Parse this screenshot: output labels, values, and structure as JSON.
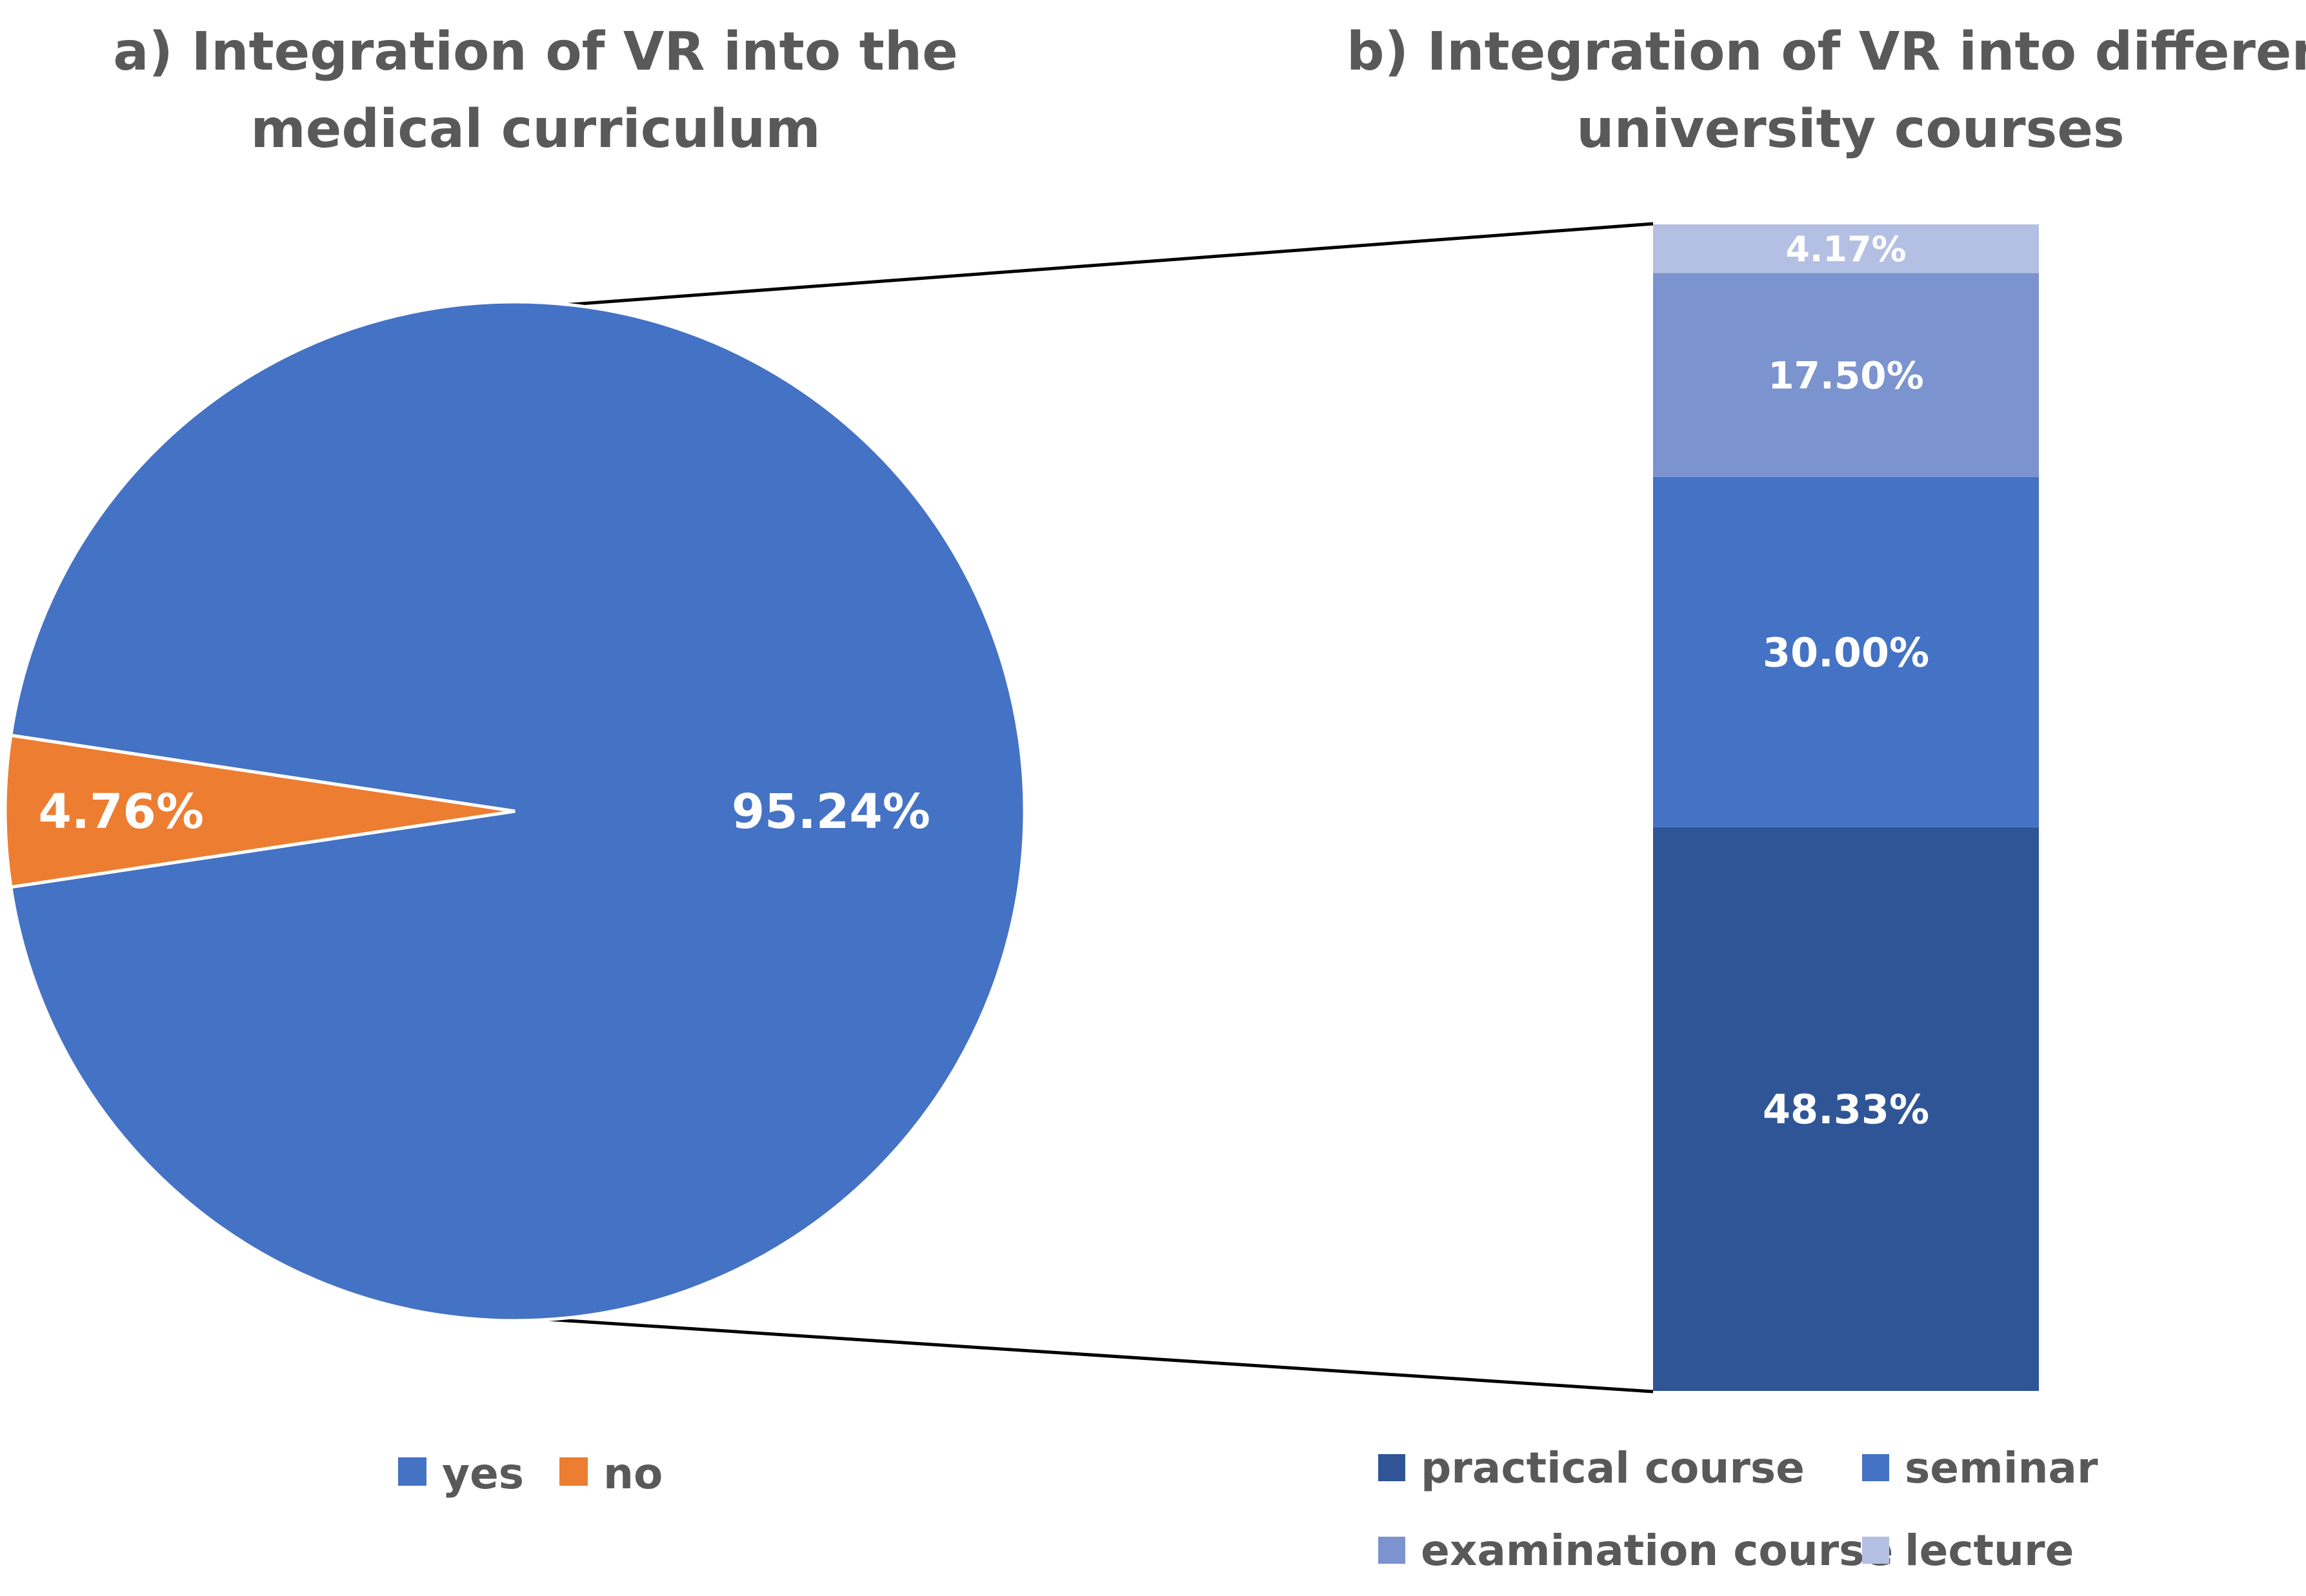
{
  "chart_data": [
    {
      "type": "pie",
      "title": "a) Integration of VR into the medical curriculum",
      "title_lines": [
        "a) Integration of VR into the",
        "medical curriculum"
      ],
      "categories": [
        "yes",
        "no"
      ],
      "values": [
        95.24,
        4.76
      ],
      "data_labels": [
        "95.24%",
        "4.76%"
      ],
      "colors": [
        "#4472C4",
        "#ED7D31"
      ],
      "legend": {
        "position": "bottom",
        "entries": [
          "yes",
          "no"
        ]
      }
    },
    {
      "type": "bar",
      "stacked": true,
      "title": "b) Integration of VR into different university courses",
      "title_lines": [
        "b) Integration of VR into different",
        "university courses"
      ],
      "categories": [
        "practical course",
        "seminar",
        "examination course",
        "lecture"
      ],
      "values": [
        48.33,
        30.0,
        17.5,
        4.17
      ],
      "data_labels": [
        "48.33%",
        "30.00%",
        "17.50%",
        "4.17%"
      ],
      "colors": [
        "#2F5597",
        "#4472C4",
        "#7B93CE",
        "#B4C0E3"
      ],
      "ylim": [
        0,
        100
      ],
      "legend": {
        "position": "bottom",
        "entries": [
          "practical course",
          "seminar",
          "examination course",
          "lecture"
        ]
      }
    }
  ]
}
